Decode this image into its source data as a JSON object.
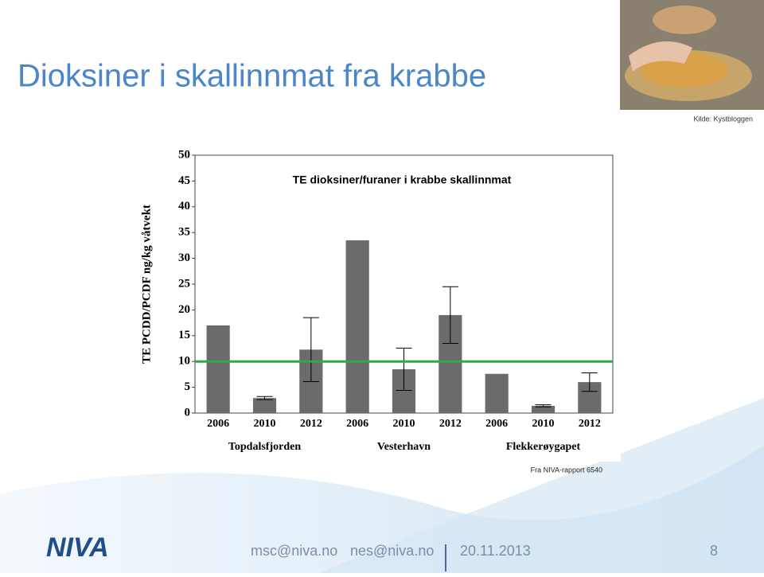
{
  "slide": {
    "title": "Dioksiner i skallinnmat fra krabbe",
    "image_credit": "Kilde: Kystbloggen",
    "source_note": "Fra NIVA-rapport 6540",
    "logo": "NIVA",
    "footer": {
      "email_1": "msc@niva.no",
      "email_2": "nes@niva.no",
      "date": "20.11.2013",
      "page": "8"
    }
  },
  "chart_data": {
    "type": "bar",
    "title": "TE dioksiner/furaner i krabbe skallinnmat",
    "y_label": "TE PCDD/PCDF ng/kg våtvekt",
    "categories": [
      "2006",
      "2010",
      "2012",
      "2006",
      "2010",
      "2012",
      "2006",
      "2010",
      "2012"
    ],
    "groups": [
      "Topdalsfjorden",
      "Vesterhavn",
      "Flekkerøygapet"
    ],
    "values": [
      17.0,
      2.9,
      12.3,
      33.5,
      8.5,
      19.0,
      7.6,
      1.4,
      6.0
    ],
    "errors": [
      null,
      0.3,
      6.2,
      null,
      4.1,
      5.5,
      null,
      0.2,
      1.8
    ],
    "color": "#6b6b6b",
    "reference_line": {
      "value": 10,
      "color": "#2ea84a"
    },
    "ylim": [
      0,
      50
    ],
    "yticks": [
      0,
      5,
      10,
      15,
      20,
      25,
      30,
      35,
      40,
      45,
      50
    ],
    "grid": false
  }
}
